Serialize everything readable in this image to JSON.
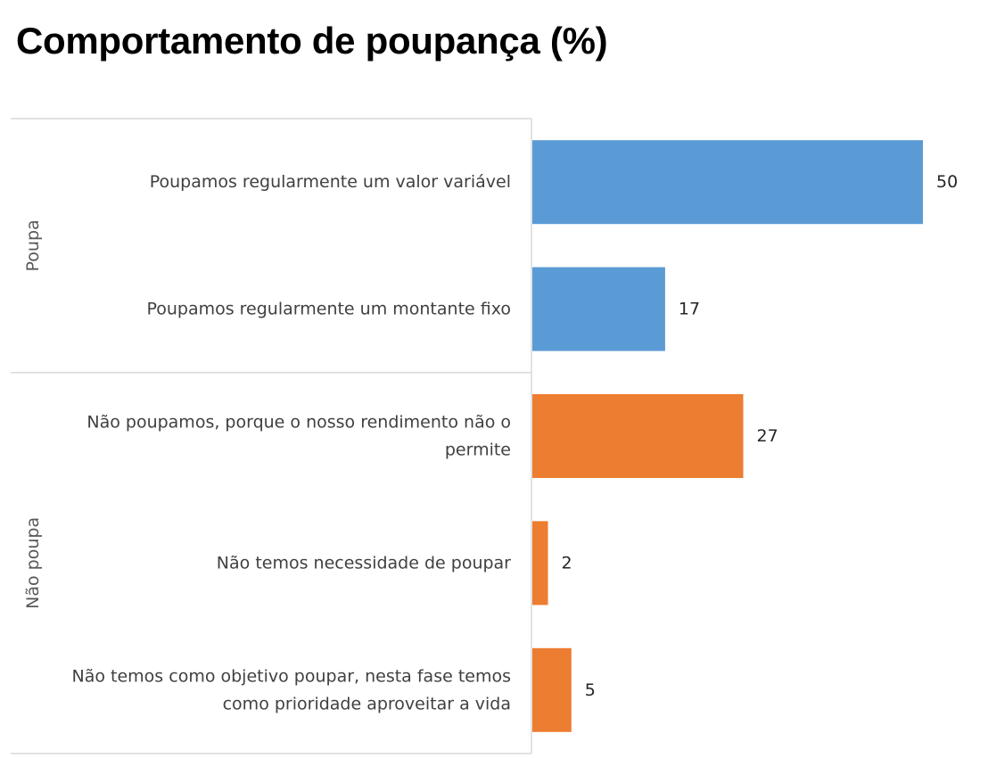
{
  "title": "Comportamento de poupança (%)",
  "colors": {
    "poupa": "#5B9BD5",
    "nao_poupa": "#ED7D31",
    "axis": "#D9D9D9"
  },
  "chart_data": {
    "type": "bar",
    "orientation": "horizontal",
    "title": "Comportamento de poupança (%)",
    "groups": [
      {
        "label": "Poupa",
        "color": "#5B9BD5",
        "categories": [
          {
            "label": "Poupamos regularmente um valor variável",
            "lines": [
              "Poupamos regularmente um valor variável"
            ],
            "value": 50
          },
          {
            "label": "Poupamos regularmente um montante fixo",
            "lines": [
              "Poupamos regularmente um montante fixo"
            ],
            "value": 17
          }
        ]
      },
      {
        "label": "Não poupa",
        "color": "#ED7D31",
        "categories": [
          {
            "label": "Não poupamos, porque o nosso rendimento não o permite",
            "lines": [
              "Não poupamos, porque o nosso rendimento não o",
              "permite"
            ],
            "value": 27
          },
          {
            "label": "Não temos necessidade de poupar",
            "lines": [
              "Não temos necessidade de poupar"
            ],
            "value": 2
          },
          {
            "label": "Não temos como objetivo poupar, nesta fase temos como prioridade aproveitar a vida",
            "lines": [
              "Não temos como objetivo poupar, nesta fase temos",
              "como prioridade aproveitar a vida"
            ],
            "value": 5
          }
        ]
      }
    ],
    "xlim": [
      0,
      50
    ],
    "grid": false,
    "legend": "none",
    "data_labels": true
  }
}
